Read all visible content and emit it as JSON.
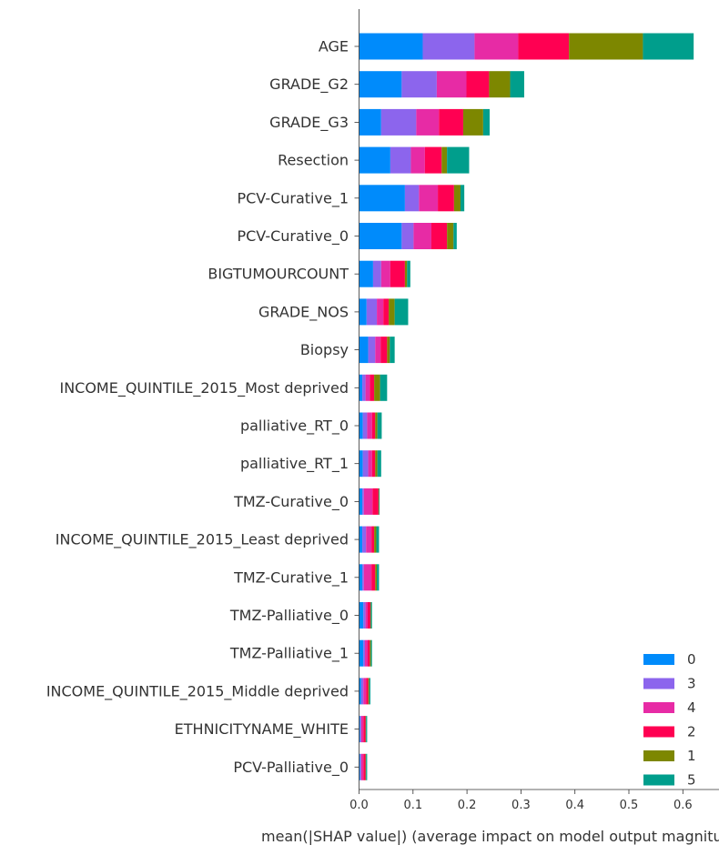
{
  "chart_data": {
    "type": "bar",
    "orientation": "horizontal",
    "stacked": true,
    "xlabel": "mean(|SHAP value|) (average impact on model output magnitude)",
    "ylabel": "",
    "xlim": [
      0,
      0.65
    ],
    "xticks": [
      0.0,
      0.1,
      0.2,
      0.3,
      0.4,
      0.5,
      0.6
    ],
    "xtick_labels": [
      "0.0",
      "0.1",
      "0.2",
      "0.3",
      "0.4",
      "0.5",
      "0.6"
    ],
    "grid": false,
    "legend_position": "bottom-right",
    "categories": [
      "AGE",
      "GRADE_G2",
      "GRADE_G3",
      "Resection",
      "PCV-Curative_1",
      "PCV-Curative_0",
      "BIGTUMOURCOUNT",
      "GRADE_NOS",
      "Biopsy",
      "INCOME_QUINTILE_2015_Most deprived",
      "palliative_RT_0",
      "palliative_RT_1",
      "TMZ-Curative_0",
      "INCOME_QUINTILE_2015_Least deprived",
      "TMZ-Curative_1",
      "TMZ-Palliative_0",
      "TMZ-Palliative_1",
      "INCOME_QUINTILE_2015_Middle deprived",
      "ETHNICITYNAME_WHITE",
      "PCV-Palliative_0"
    ],
    "series": [
      {
        "name": "0",
        "color": "#008bfb",
        "values": [
          0.118,
          0.079,
          0.041,
          0.058,
          0.085,
          0.079,
          0.026,
          0.014,
          0.017,
          0.006,
          0.007,
          0.007,
          0.006,
          0.006,
          0.006,
          0.008,
          0.008,
          0.004,
          0.002,
          0.002
        ]
      },
      {
        "name": "3",
        "color": "#8c65ed",
        "values": [
          0.096,
          0.065,
          0.065,
          0.038,
          0.026,
          0.022,
          0.015,
          0.019,
          0.013,
          0.006,
          0.008,
          0.01,
          0.003,
          0.007,
          0.003,
          0.004,
          0.003,
          0.004,
          0.002,
          0.002
        ]
      },
      {
        "name": "4",
        "color": "#e72ba5",
        "values": [
          0.081,
          0.055,
          0.042,
          0.026,
          0.035,
          0.033,
          0.017,
          0.012,
          0.01,
          0.008,
          0.009,
          0.007,
          0.016,
          0.01,
          0.014,
          0.004,
          0.005,
          0.005,
          0.004,
          0.004
        ]
      },
      {
        "name": "2",
        "color": "#ff0052",
        "values": [
          0.094,
          0.042,
          0.045,
          0.031,
          0.03,
          0.029,
          0.027,
          0.01,
          0.012,
          0.008,
          0.006,
          0.006,
          0.011,
          0.005,
          0.007,
          0.005,
          0.004,
          0.004,
          0.004,
          0.004
        ]
      },
      {
        "name": "1",
        "color": "#7d8700",
        "values": [
          0.137,
          0.039,
          0.037,
          0.01,
          0.012,
          0.012,
          0.004,
          0.011,
          0.005,
          0.011,
          0.004,
          0.004,
          0.001,
          0.004,
          0.003,
          0.001,
          0.002,
          0.002,
          0.001,
          0.001
        ]
      },
      {
        "name": "5",
        "color": "#009e8c",
        "values": [
          0.094,
          0.026,
          0.012,
          0.041,
          0.007,
          0.006,
          0.006,
          0.025,
          0.009,
          0.013,
          0.008,
          0.007,
          0.001,
          0.005,
          0.004,
          0.002,
          0.002,
          0.002,
          0.002,
          0.002
        ]
      }
    ]
  }
}
